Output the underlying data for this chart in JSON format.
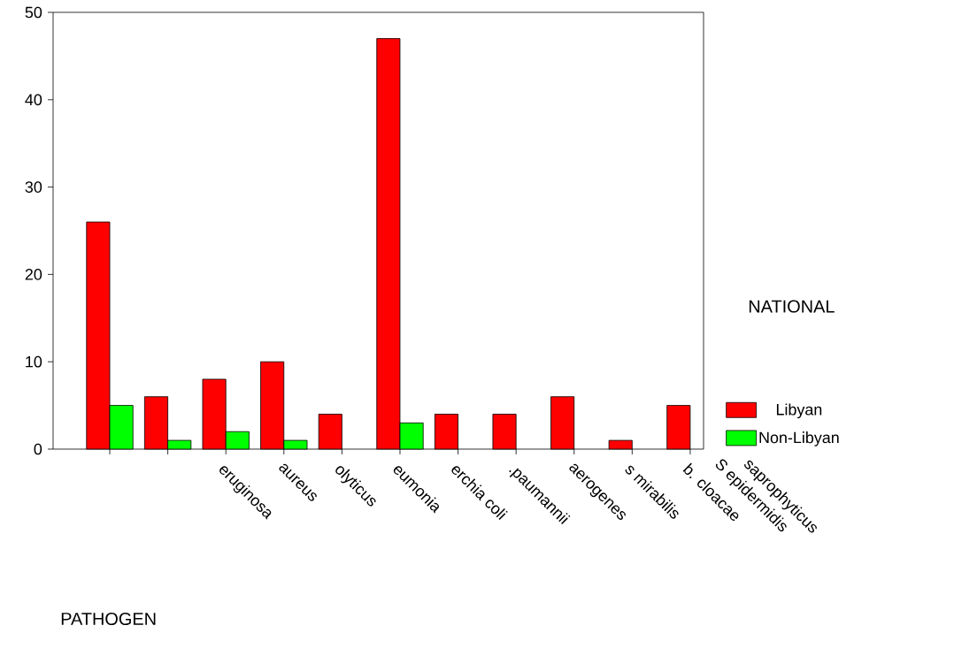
{
  "chart_data": {
    "type": "bar",
    "legend_title": "NATIONAL",
    "categories": [
      null,
      null,
      "eruginosa",
      "aureus",
      "olyticus",
      "eumonia",
      "erchia coli",
      ".paumannii",
      "aerogenes",
      "s mirabilis",
      "b. cloacae"
    ],
    "series": [
      {
        "name": "Libyan",
        "color": "#ff0000",
        "values": [
          26,
          6,
          8,
          10,
          4,
          47,
          4,
          4,
          6,
          1,
          5
        ]
      },
      {
        "name": "Non-Libyan",
        "color": "#00ff00",
        "values": [
          5,
          1,
          2,
          1,
          null,
          3,
          null,
          null,
          null,
          null,
          null
        ]
      }
    ],
    "annotations": [
      "S epidermidis",
      "saprophyticus",
      "PATHOGEN"
    ],
    "ylim": [
      0,
      50
    ],
    "yticks": [
      0,
      10,
      20,
      30,
      40,
      50
    ],
    "grid": false,
    "legend": "right"
  }
}
